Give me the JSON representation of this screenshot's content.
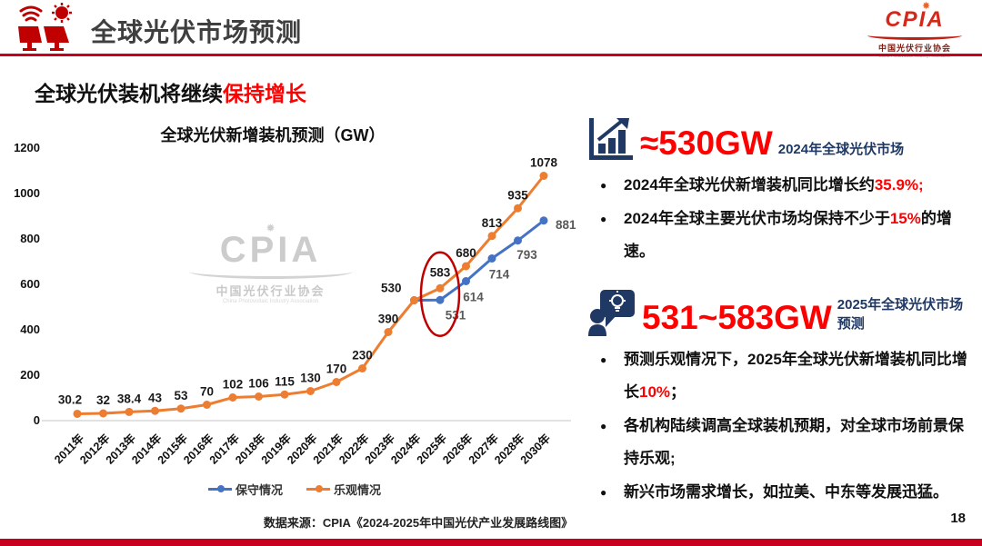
{
  "header": {
    "title": "全球光伏市场预测",
    "logo": {
      "text": "CPIA",
      "subtext": "中国光伏行业协会",
      "subtext_en": "China Photovoltaic Industry Association"
    }
  },
  "subtitle": {
    "black": "全球光伏装机将继续",
    "red": "保持增长"
  },
  "chart_data": {
    "type": "line",
    "title": "全球光伏新增装机预测（GW）",
    "categories": [
      "2011年",
      "2012年",
      "2013年",
      "2014年",
      "2015年",
      "2016年",
      "2017年",
      "2018年",
      "2019年",
      "2020年",
      "2021年",
      "2022年",
      "2023年",
      "2024年",
      "2025年",
      "2026年",
      "2027年",
      "2028年",
      "2030年"
    ],
    "series": [
      {
        "name": "保守情况",
        "color": "#4472C4",
        "label_color": "#595959",
        "start_index": 13,
        "values": [
          530,
          531,
          614,
          714,
          793,
          881
        ],
        "hide_label_indices": [
          0
        ]
      },
      {
        "name": "乐观情况",
        "color": "#ED7D31",
        "label_color": "#1A1A1A",
        "start_index": 0,
        "values": [
          30.2,
          32,
          38.4,
          43,
          53,
          70,
          102,
          106,
          115,
          130,
          170,
          230,
          390,
          530,
          583,
          680,
          813,
          935,
          1078
        ],
        "hide_label_indices": []
      }
    ],
    "ylabel": "",
    "xlabel": "",
    "ylim": [
      0,
      1200
    ],
    "yticks": [
      0,
      200,
      400,
      600,
      800,
      1000,
      1200
    ],
    "gridlines": false,
    "legend_position": "bottom",
    "annotation": {
      "shape": "ellipse",
      "category": "2025年",
      "color": "#C00000"
    }
  },
  "watermark": {
    "brand": "CPIA",
    "line1": "中国光伏行业协会",
    "line2": "China Photovoltaic Industry Association"
  },
  "panel": {
    "sections": [
      {
        "icon": "bar-chart-growth-icon",
        "headline": "≈530GW",
        "headline_suffix": "2024年全球光伏市场",
        "bullets": [
          [
            {
              "t": "2024年全球光伏新增装机同比增长约"
            },
            {
              "t": "35.9%;",
              "red": true
            }
          ],
          [
            {
              "t": "2024年全球主要光伏市场均保持不少于"
            },
            {
              "t": "15%",
              "red": true
            },
            {
              "t": "的增速。"
            }
          ]
        ]
      },
      {
        "icon": "person-idea-icon",
        "headline": "531~583GW",
        "headline_suffix": "2025年全球光伏市场预测",
        "bullets": [
          [
            {
              "t": "预测乐观情况下，2025年全球光伏新增装机同比增长"
            },
            {
              "t": "10%",
              "red": true
            },
            {
              "t": "；"
            }
          ],
          [
            {
              "t": "各机构陆续调高全球装机预期，对全球市场前景保持乐观;"
            }
          ],
          [
            {
              "t": "新兴市场需求增长，如拉美、中东等发展迅猛。"
            }
          ]
        ]
      }
    ]
  },
  "footer": {
    "source": "数据来源：CPIA《2024-2025年中国光伏产业发展路线图》",
    "page_number": "18"
  },
  "colors": {
    "accent_red": "#C9001D",
    "text_red": "#FF0000",
    "navy": "#1F3864",
    "orange": "#ED7D31",
    "blue": "#4472C4",
    "ellipse_red": "#C00000"
  }
}
